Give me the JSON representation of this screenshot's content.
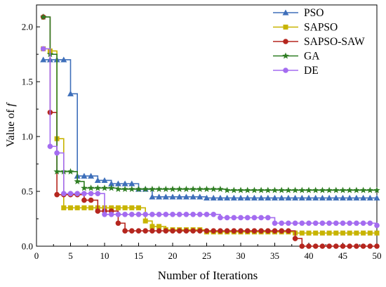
{
  "chart_data": {
    "type": "line",
    "title": "",
    "xlabel": "Number of Iterations",
    "ylabel_main": "Value of ",
    "ylabel_var": "f",
    "xlim": [
      0,
      50
    ],
    "ylim": [
      0,
      2.2
    ],
    "x_ticks": [
      0,
      5,
      10,
      15,
      20,
      25,
      30,
      35,
      40,
      45,
      50
    ],
    "y_ticks": [
      0.0,
      0.5,
      1.0,
      1.5,
      2.0
    ],
    "y_tick_labels": [
      "0.0",
      "0.5",
      "1.0",
      "1.5",
      "2.0"
    ],
    "grid": false,
    "legend_position": "top-right",
    "series": [
      {
        "name": "PSO",
        "color": "#3e6fba",
        "marker": "triangle",
        "x": [
          1,
          2,
          3,
          4,
          5,
          6,
          7,
          8,
          9,
          10,
          11,
          12,
          13,
          14,
          15,
          16,
          17,
          18,
          19,
          20,
          21,
          22,
          23,
          24,
          25,
          26,
          27,
          28,
          29,
          30,
          31,
          32,
          33,
          34,
          35,
          36,
          37,
          38,
          39,
          40,
          41,
          42,
          43,
          44,
          45,
          46,
          47,
          48,
          49,
          50
        ],
        "y": [
          1.7,
          1.7,
          1.7,
          1.7,
          1.39,
          0.64,
          0.64,
          0.64,
          0.6,
          0.6,
          0.57,
          0.57,
          0.57,
          0.57,
          0.52,
          0.52,
          0.45,
          0.45,
          0.45,
          0.45,
          0.45,
          0.45,
          0.45,
          0.45,
          0.44,
          0.44,
          0.44,
          0.44,
          0.44,
          0.44,
          0.44,
          0.44,
          0.44,
          0.44,
          0.44,
          0.44,
          0.44,
          0.44,
          0.44,
          0.44,
          0.44,
          0.44,
          0.44,
          0.44,
          0.44,
          0.44,
          0.44,
          0.44,
          0.44,
          0.44
        ]
      },
      {
        "name": "SAPSO",
        "color": "#c8b400",
        "marker": "square",
        "x": [
          1,
          2,
          3,
          4,
          5,
          6,
          7,
          8,
          9,
          10,
          11,
          12,
          13,
          14,
          15,
          16,
          17,
          18,
          19,
          20,
          21,
          22,
          23,
          24,
          25,
          26,
          27,
          28,
          29,
          30,
          31,
          32,
          33,
          34,
          35,
          36,
          37,
          38,
          39,
          40,
          41,
          42,
          43,
          44,
          45,
          46,
          47,
          48,
          49,
          50
        ],
        "y": [
          1.8,
          1.78,
          0.98,
          0.35,
          0.35,
          0.35,
          0.35,
          0.35,
          0.35,
          0.35,
          0.35,
          0.35,
          0.35,
          0.35,
          0.35,
          0.23,
          0.18,
          0.18,
          0.15,
          0.15,
          0.15,
          0.15,
          0.15,
          0.15,
          0.13,
          0.13,
          0.13,
          0.13,
          0.13,
          0.13,
          0.13,
          0.13,
          0.13,
          0.13,
          0.13,
          0.13,
          0.13,
          0.12,
          0.12,
          0.12,
          0.12,
          0.12,
          0.12,
          0.12,
          0.12,
          0.12,
          0.12,
          0.12,
          0.12,
          0.12
        ]
      },
      {
        "name": "SAPSO-SAW",
        "color": "#b5261e",
        "marker": "circle",
        "x": [
          1,
          2,
          3,
          4,
          5,
          6,
          7,
          8,
          9,
          10,
          11,
          12,
          13,
          14,
          15,
          16,
          17,
          18,
          19,
          20,
          21,
          22,
          23,
          24,
          25,
          26,
          27,
          28,
          29,
          30,
          31,
          32,
          33,
          34,
          35,
          36,
          37,
          38,
          39,
          40,
          41,
          42,
          43,
          44,
          45,
          46,
          47,
          48,
          49,
          50
        ],
        "y": [
          2.09,
          1.22,
          0.47,
          0.47,
          0.47,
          0.47,
          0.42,
          0.42,
          0.32,
          0.32,
          0.32,
          0.21,
          0.14,
          0.14,
          0.14,
          0.14,
          0.14,
          0.14,
          0.14,
          0.14,
          0.14,
          0.14,
          0.14,
          0.14,
          0.14,
          0.14,
          0.14,
          0.14,
          0.14,
          0.14,
          0.14,
          0.14,
          0.14,
          0.14,
          0.14,
          0.14,
          0.14,
          0.07,
          0.0,
          0.0,
          0.0,
          0.0,
          0.0,
          0.0,
          0.0,
          0.0,
          0.0,
          0.0,
          0.0,
          0.0
        ]
      },
      {
        "name": "GA",
        "color": "#2e7d22",
        "marker": "star",
        "x": [
          1,
          2,
          3,
          4,
          5,
          6,
          7,
          8,
          9,
          10,
          11,
          12,
          13,
          14,
          15,
          16,
          17,
          18,
          19,
          20,
          21,
          22,
          23,
          24,
          25,
          26,
          27,
          28,
          29,
          30,
          31,
          32,
          33,
          34,
          35,
          36,
          37,
          38,
          39,
          40,
          41,
          42,
          43,
          44,
          45,
          46,
          47,
          48,
          49,
          50
        ],
        "y": [
          2.09,
          1.75,
          0.68,
          0.68,
          0.68,
          0.59,
          0.53,
          0.53,
          0.53,
          0.53,
          0.53,
          0.52,
          0.52,
          0.52,
          0.52,
          0.52,
          0.52,
          0.52,
          0.52,
          0.52,
          0.52,
          0.52,
          0.52,
          0.52,
          0.52,
          0.52,
          0.52,
          0.51,
          0.51,
          0.51,
          0.51,
          0.51,
          0.51,
          0.51,
          0.51,
          0.51,
          0.51,
          0.51,
          0.51,
          0.51,
          0.51,
          0.51,
          0.51,
          0.51,
          0.51,
          0.51,
          0.51,
          0.51,
          0.51,
          0.51
        ]
      },
      {
        "name": "DE",
        "color": "#a46cf0",
        "marker": "circle",
        "x": [
          1,
          2,
          3,
          4,
          5,
          6,
          7,
          8,
          9,
          10,
          11,
          12,
          13,
          14,
          15,
          16,
          17,
          18,
          19,
          20,
          21,
          22,
          23,
          24,
          25,
          26,
          27,
          28,
          29,
          30,
          31,
          32,
          33,
          34,
          35,
          36,
          37,
          38,
          39,
          40,
          41,
          42,
          43,
          44,
          45,
          46,
          47,
          48,
          49,
          50
        ],
        "y": [
          1.8,
          0.91,
          0.85,
          0.48,
          0.48,
          0.48,
          0.48,
          0.48,
          0.48,
          0.29,
          0.29,
          0.29,
          0.29,
          0.29,
          0.29,
          0.29,
          0.29,
          0.29,
          0.29,
          0.29,
          0.29,
          0.29,
          0.29,
          0.29,
          0.29,
          0.29,
          0.26,
          0.26,
          0.26,
          0.26,
          0.26,
          0.26,
          0.26,
          0.26,
          0.21,
          0.21,
          0.21,
          0.21,
          0.21,
          0.21,
          0.21,
          0.21,
          0.21,
          0.21,
          0.21,
          0.21,
          0.21,
          0.21,
          0.21,
          0.19
        ]
      }
    ]
  }
}
